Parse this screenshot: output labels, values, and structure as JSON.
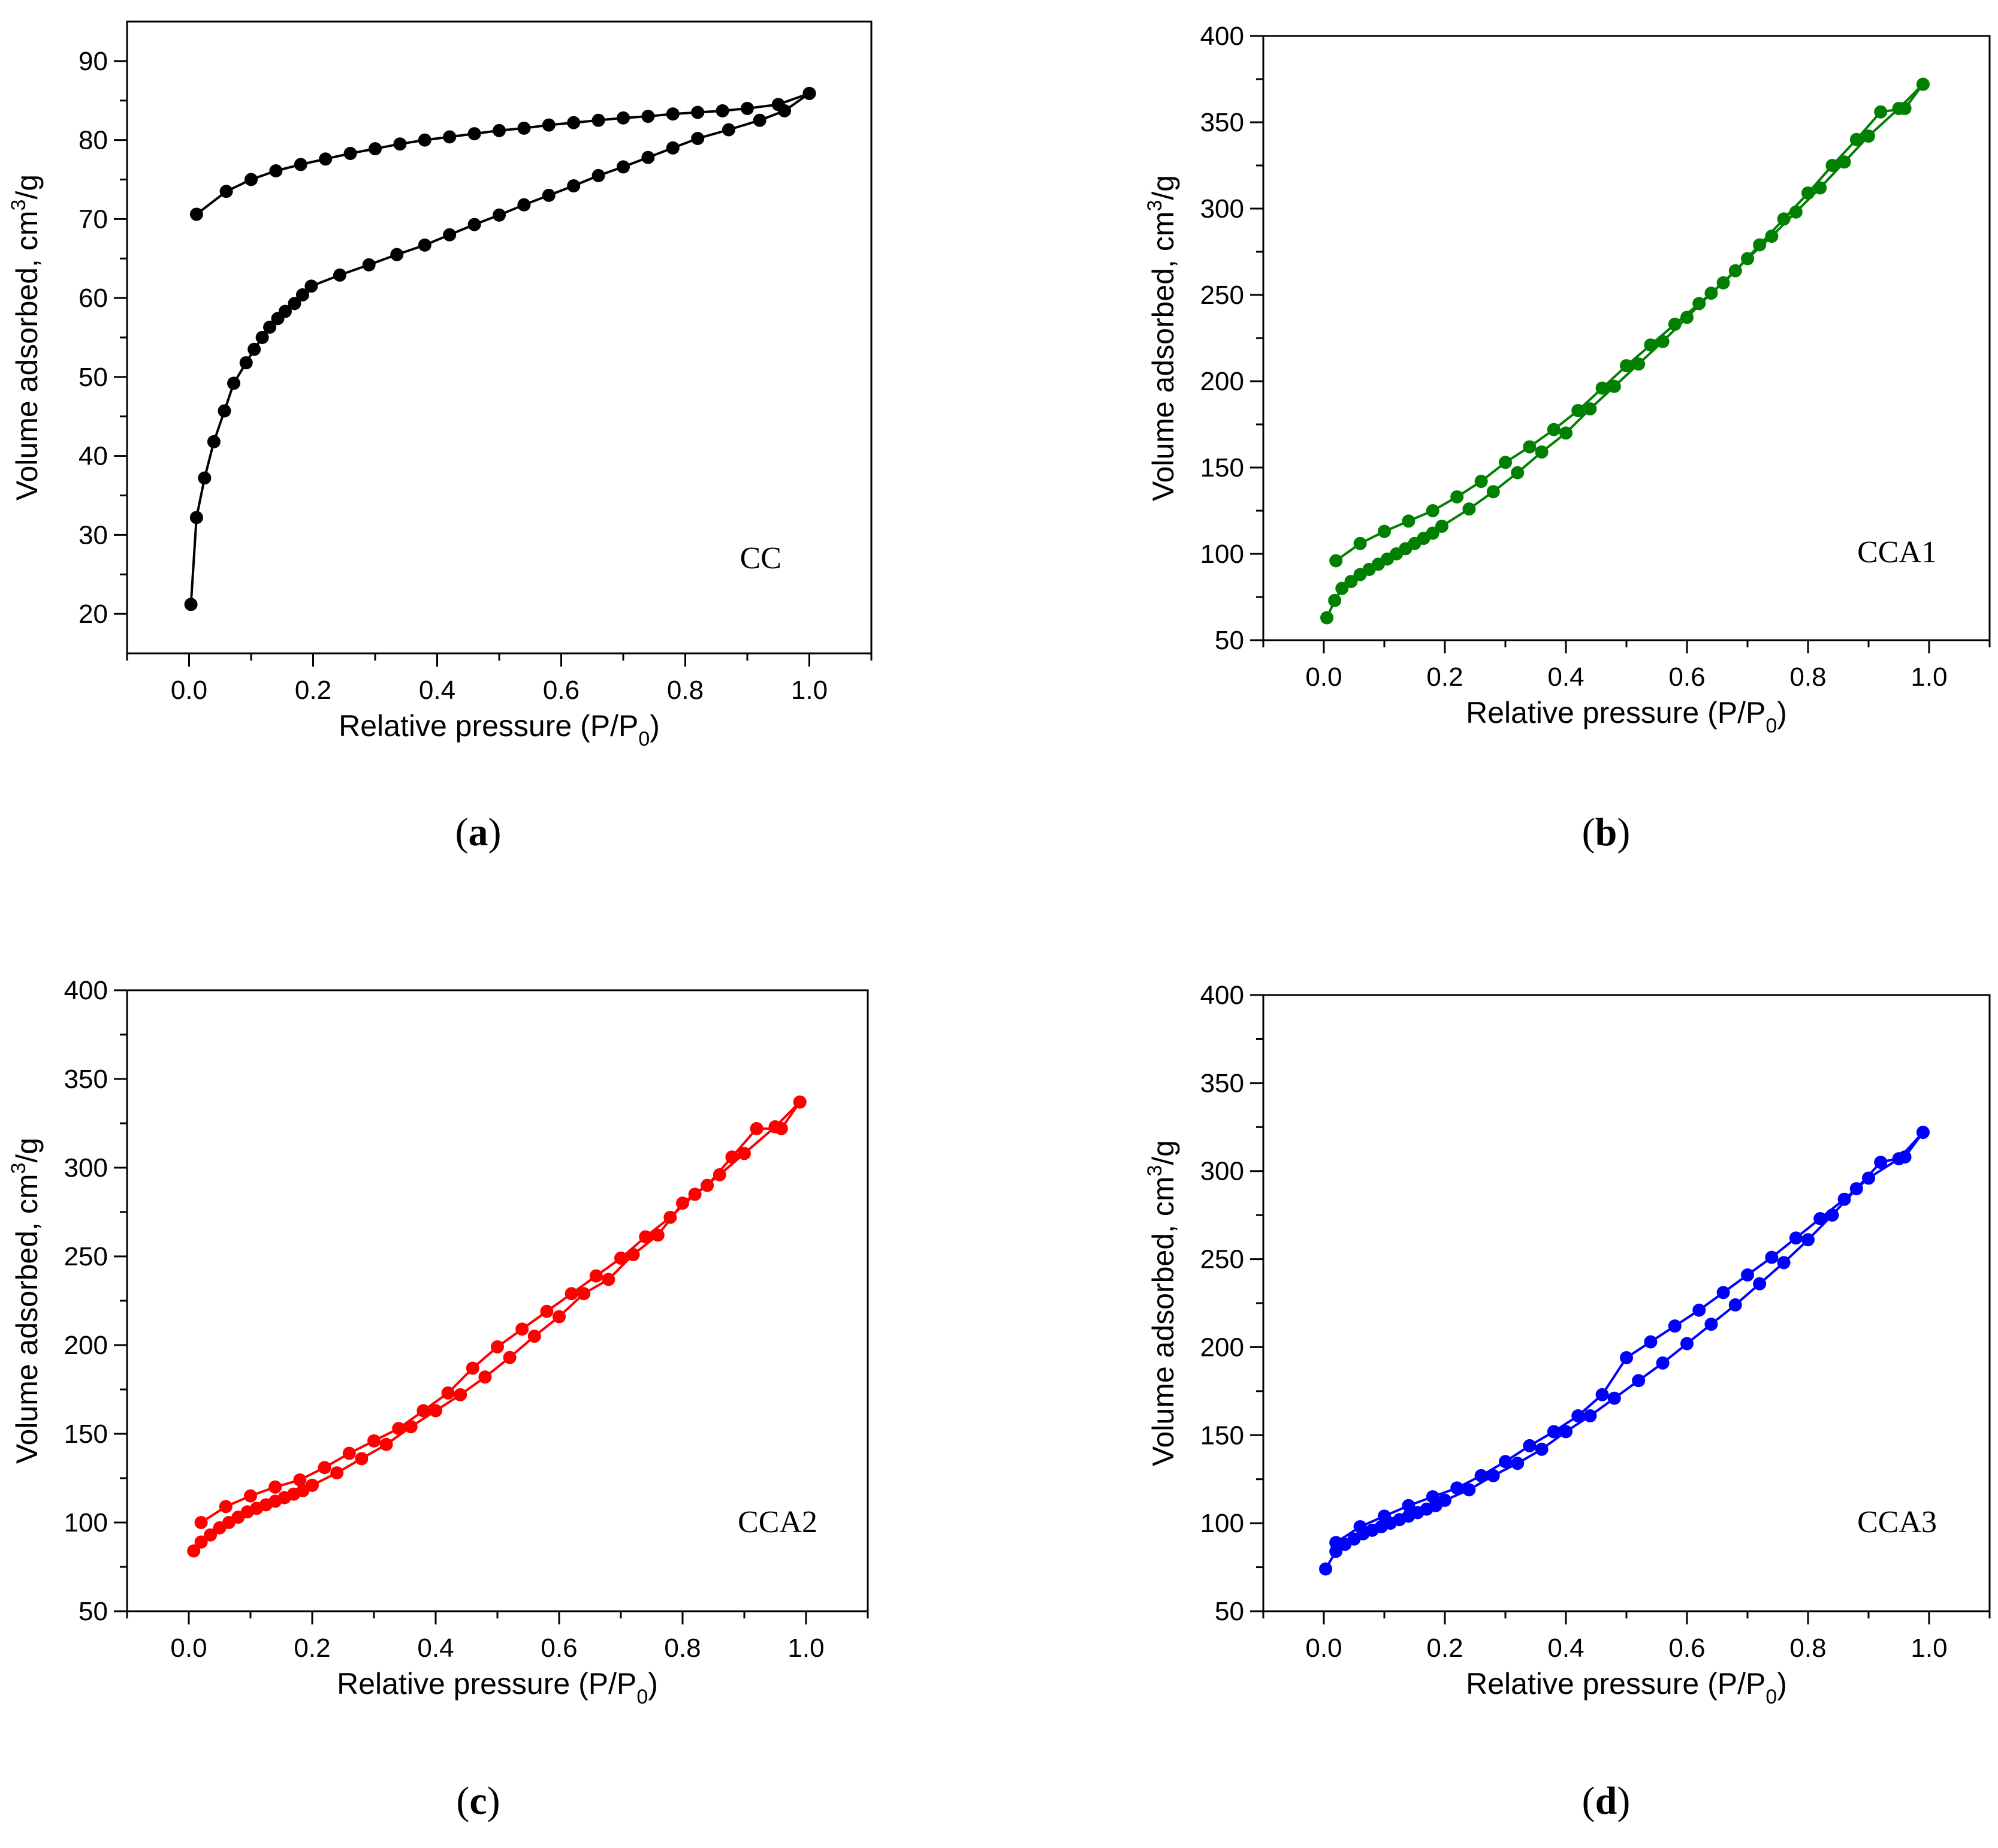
{
  "chart_data": [
    {
      "type": "scatter",
      "panel_label": "a",
      "sample_label": "CC",
      "color": "#000000",
      "xlabel_main": "Relative pressure (P/P",
      "xlabel_sub": "0",
      "xlabel_close": ")",
      "ylabel_main": "Volume adsorbed, cm",
      "ylabel_sup": "3",
      "ylabel_tail": "/g",
      "xlim": [
        -0.1,
        1.1
      ],
      "ylim": [
        15,
        95
      ],
      "xticks": [
        0.0,
        0.2,
        0.4,
        0.6,
        0.8,
        1.0
      ],
      "xtick_labels": [
        "0.0",
        "0.2",
        "0.4",
        "0.6",
        "0.8",
        "1.0"
      ],
      "yticks": [
        20,
        30,
        40,
        50,
        60,
        70,
        80,
        90
      ],
      "ytick_labels": [
        "20",
        "30",
        "40",
        "50",
        "60",
        "70",
        "80",
        "90"
      ],
      "series": [
        {
          "x": [
            0.003,
            0.012,
            0.025,
            0.04,
            0.057,
            0.072,
            0.092,
            0.105,
            0.118,
            0.13,
            0.143,
            0.155,
            0.17,
            0.183,
            0.197,
            0.243,
            0.29,
            0.335,
            0.38,
            0.42,
            0.46,
            0.5,
            0.54,
            0.58,
            0.62,
            0.66,
            0.7,
            0.74,
            0.78,
            0.82,
            0.87,
            0.92,
            0.96,
            1.0
          ],
          "y": [
            21.2,
            32.2,
            37.2,
            41.8,
            45.7,
            49.2,
            51.8,
            53.5,
            55.0,
            56.3,
            57.4,
            58.3,
            59.3,
            60.4,
            61.5,
            62.9,
            64.2,
            65.5,
            66.7,
            68.0,
            69.3,
            70.5,
            71.8,
            73.0,
            74.2,
            75.5,
            76.6,
            77.8,
            79.0,
            80.2,
            81.3,
            82.5,
            83.7,
            85.9
          ]
        },
        {
          "x": [
            1.0,
            0.95,
            0.9,
            0.86,
            0.82,
            0.78,
            0.74,
            0.7,
            0.66,
            0.62,
            0.58,
            0.54,
            0.5,
            0.46,
            0.42,
            0.38,
            0.34,
            0.3,
            0.26,
            0.22,
            0.18,
            0.14,
            0.1,
            0.06,
            0.012
          ],
          "y": [
            85.9,
            84.5,
            84.0,
            83.7,
            83.5,
            83.3,
            83.0,
            82.8,
            82.5,
            82.2,
            81.9,
            81.5,
            81.2,
            80.8,
            80.4,
            80.0,
            79.5,
            78.9,
            78.3,
            77.6,
            76.9,
            76.1,
            75.0,
            73.5,
            70.6
          ]
        }
      ]
    },
    {
      "type": "scatter",
      "panel_label": "b",
      "sample_label": "CCA1",
      "color": "#007f00",
      "xlabel_main": "Relative pressure (P/P",
      "xlabel_sub": "0",
      "xlabel_close": ")",
      "ylabel_main": "Volume adsorbed, cm",
      "ylabel_sup": "3",
      "ylabel_tail": "/g",
      "xlim": [
        -0.1,
        1.1
      ],
      "ylim": [
        50,
        400
      ],
      "xticks": [
        0.0,
        0.2,
        0.4,
        0.6,
        0.8,
        1.0
      ],
      "xtick_labels": [
        "0.0",
        "0.2",
        "0.4",
        "0.6",
        "0.8",
        "1.0"
      ],
      "yticks": [
        50,
        100,
        150,
        200,
        250,
        300,
        350,
        400
      ],
      "ytick_labels": [
        "50",
        "100",
        "150",
        "200",
        "250",
        "300",
        "350",
        "400"
      ],
      "series": [
        {
          "x": [
            0.005,
            0.018,
            0.03,
            0.045,
            0.06,
            0.075,
            0.09,
            0.105,
            0.12,
            0.135,
            0.15,
            0.165,
            0.18,
            0.195,
            0.24,
            0.28,
            0.32,
            0.36,
            0.4,
            0.44,
            0.48,
            0.52,
            0.56,
            0.6,
            0.64,
            0.68,
            0.72,
            0.76,
            0.8,
            0.84,
            0.88,
            0.92,
            0.96,
            0.99
          ],
          "y": [
            63,
            73,
            80,
            84,
            88,
            91,
            94,
            97,
            100,
            103,
            106,
            109,
            112,
            116,
            126,
            136,
            147,
            159,
            170,
            184,
            197,
            210,
            223,
            237,
            251,
            264,
            279,
            294,
            309,
            325,
            340,
            356,
            358,
            372
          ]
        },
        {
          "x": [
            0.99,
            0.95,
            0.9,
            0.86,
            0.82,
            0.78,
            0.74,
            0.7,
            0.66,
            0.62,
            0.58,
            0.54,
            0.5,
            0.46,
            0.42,
            0.38,
            0.34,
            0.3,
            0.26,
            0.22,
            0.18,
            0.14,
            0.1,
            0.06,
            0.02
          ],
          "y": [
            372,
            358,
            342,
            327,
            312,
            298,
            284,
            271,
            257,
            245,
            233,
            221,
            209,
            196,
            183,
            172,
            162,
            153,
            142,
            133,
            125,
            119,
            113,
            106,
            96
          ]
        }
      ]
    },
    {
      "type": "scatter",
      "panel_label": "c",
      "sample_label": "CCA2",
      "color": "#ff0000",
      "xlabel_main": "Relative pressure (P/P",
      "xlabel_sub": "0",
      "xlabel_close": ")",
      "ylabel_main": "Volume adsorbed, cm",
      "ylabel_sup": "3",
      "ylabel_tail": "/g",
      "xlim": [
        -0.1,
        1.1
      ],
      "ylim": [
        50,
        400
      ],
      "xticks": [
        0.0,
        0.2,
        0.4,
        0.6,
        0.8,
        1.0
      ],
      "xtick_labels": [
        "0.0",
        "0.2",
        "0.4",
        "0.6",
        "0.8",
        "1.0"
      ],
      "yticks": [
        50,
        100,
        150,
        200,
        250,
        300,
        350,
        400
      ],
      "ytick_labels": [
        "50",
        "100",
        "150",
        "200",
        "250",
        "300",
        "350",
        "400"
      ],
      "series": [
        {
          "x": [
            0.008,
            0.02,
            0.035,
            0.05,
            0.065,
            0.08,
            0.095,
            0.11,
            0.125,
            0.14,
            0.155,
            0.17,
            0.185,
            0.2,
            0.24,
            0.28,
            0.32,
            0.36,
            0.4,
            0.44,
            0.48,
            0.52,
            0.56,
            0.6,
            0.64,
            0.68,
            0.72,
            0.76,
            0.8,
            0.84,
            0.88,
            0.92,
            0.96,
            0.99
          ],
          "y": [
            84,
            89,
            93,
            97,
            100,
            103,
            106,
            108,
            110,
            112,
            114,
            116,
            118,
            121,
            128,
            136,
            144,
            154,
            163,
            172,
            182,
            193,
            205,
            216,
            229,
            237,
            251,
            262,
            280,
            290,
            306,
            322,
            322,
            337
          ]
        },
        {
          "x": [
            0.99,
            0.95,
            0.9,
            0.86,
            0.82,
            0.78,
            0.74,
            0.7,
            0.66,
            0.62,
            0.58,
            0.54,
            0.5,
            0.46,
            0.42,
            0.38,
            0.34,
            0.3,
            0.26,
            0.22,
            0.18,
            0.14,
            0.1,
            0.06,
            0.02
          ],
          "y": [
            337,
            323,
            308,
            296,
            285,
            272,
            261,
            249,
            239,
            229,
            219,
            209,
            199,
            187,
            173,
            163,
            153,
            146,
            139,
            131,
            124,
            120,
            115,
            109,
            100
          ]
        }
      ]
    },
    {
      "type": "scatter",
      "panel_label": "d",
      "sample_label": "CCA3",
      "color": "#0000ff",
      "xlabel_main": "Relative pressure (P/P",
      "xlabel_sub": "0",
      "xlabel_close": ")",
      "ylabel_main": "Volume adsorbed, cm",
      "ylabel_sup": "3",
      "ylabel_tail": "/g",
      "xlim": [
        -0.1,
        1.1
      ],
      "ylim": [
        50,
        400
      ],
      "xticks": [
        0.0,
        0.2,
        0.4,
        0.6,
        0.8,
        1.0
      ],
      "xtick_labels": [
        "0.0",
        "0.2",
        "0.4",
        "0.6",
        "0.8",
        "1.0"
      ],
      "yticks": [
        50,
        100,
        150,
        200,
        250,
        300,
        350,
        400
      ],
      "ytick_labels": [
        "50",
        "100",
        "150",
        "200",
        "250",
        "300",
        "350",
        "400"
      ],
      "series": [
        {
          "x": [
            0.003,
            0.02,
            0.035,
            0.05,
            0.065,
            0.08,
            0.095,
            0.11,
            0.125,
            0.14,
            0.155,
            0.17,
            0.185,
            0.2,
            0.24,
            0.28,
            0.32,
            0.36,
            0.4,
            0.44,
            0.48,
            0.52,
            0.56,
            0.6,
            0.64,
            0.68,
            0.72,
            0.76,
            0.8,
            0.84,
            0.88,
            0.92,
            0.96,
            0.99
          ],
          "y": [
            74,
            84,
            88,
            91,
            94,
            96,
            98,
            100,
            102,
            104,
            106,
            108,
            110,
            113,
            119,
            127,
            134,
            142,
            152,
            161,
            171,
            181,
            191,
            202,
            213,
            224,
            236,
            248,
            261,
            275,
            290,
            305,
            308,
            322
          ]
        },
        {
          "x": [
            0.99,
            0.95,
            0.9,
            0.86,
            0.82,
            0.78,
            0.74,
            0.7,
            0.66,
            0.62,
            0.58,
            0.54,
            0.5,
            0.46,
            0.42,
            0.38,
            0.34,
            0.3,
            0.26,
            0.22,
            0.18,
            0.14,
            0.1,
            0.06,
            0.02
          ],
          "y": [
            322,
            307,
            296,
            284,
            273,
            262,
            251,
            241,
            231,
            221,
            212,
            203,
            194,
            173,
            161,
            152,
            144,
            135,
            127,
            120,
            115,
            110,
            104,
            98,
            89
          ]
        }
      ]
    }
  ]
}
